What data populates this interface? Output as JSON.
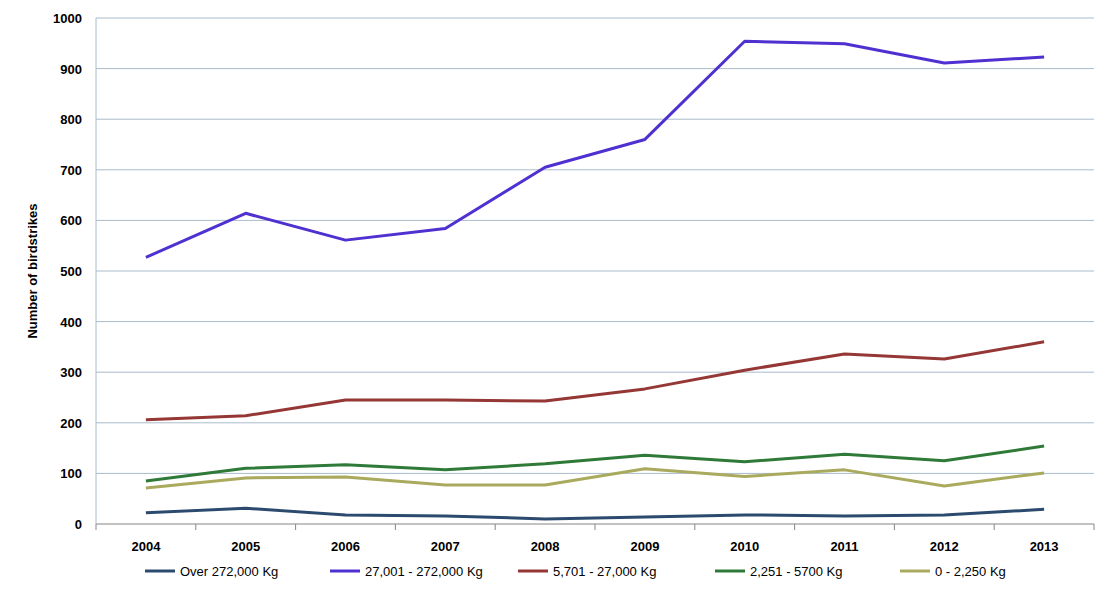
{
  "chart_data": {
    "type": "line",
    "y_label": "Number of birdstrikes",
    "categories": [
      "2004",
      "2005",
      "2006",
      "2007",
      "2008",
      "2009",
      "2010",
      "2011",
      "2012",
      "2013"
    ],
    "series": [
      {
        "name": "Over 272,000 Kg",
        "color": "#2c4a6e",
        "values": [
          22,
          31,
          18,
          16,
          10,
          14,
          18,
          16,
          18,
          29
        ]
      },
      {
        "name": "27,001 - 272,000 Kg",
        "color": "#4f30d0",
        "values": [
          527,
          614,
          561,
          584,
          705,
          760,
          954,
          949,
          911,
          923
        ]
      },
      {
        "name": "5,701 - 27,000 Kg",
        "color": "#953735",
        "values": [
          206,
          214,
          245,
          245,
          243,
          267,
          304,
          336,
          326,
          360
        ]
      },
      {
        "name": "2,251 - 5700 Kg",
        "color": "#2f7a38",
        "values": [
          85,
          110,
          117,
          107,
          119,
          136,
          123,
          138,
          125,
          154
        ]
      },
      {
        "name": "0 - 2,250 Kg",
        "color": "#aaaa5e",
        "values": [
          71,
          91,
          93,
          77,
          77,
          109,
          94,
          107,
          75,
          101
        ]
      }
    ],
    "ylim": [
      0,
      1000
    ],
    "yticks": [
      0,
      100,
      200,
      300,
      400,
      500,
      600,
      700,
      800,
      900,
      1000
    ],
    "grid": true,
    "legend": "bottom"
  }
}
